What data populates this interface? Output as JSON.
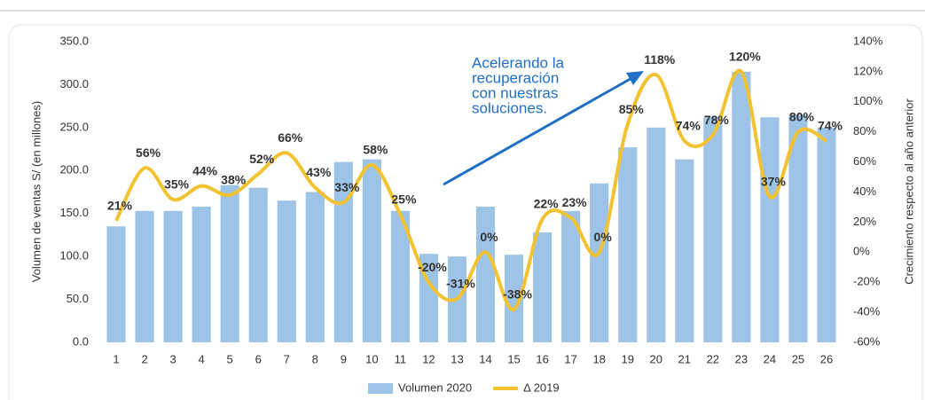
{
  "chart_data": {
    "type": "combo",
    "ylabel": "Volumen de ventas S/ (en millones)",
    "y2label": "Crecimiento respecto al año anterior",
    "annotation": [
      "Acelerando la",
      "recuperación",
      "con nuestras",
      "soluciones."
    ],
    "categories": [
      "1",
      "2",
      "3",
      "4",
      "5",
      "6",
      "7",
      "8",
      "9",
      "10",
      "11",
      "12",
      "13",
      "14",
      "15",
      "16",
      "17",
      "18",
      "19",
      "20",
      "21",
      "22",
      "23",
      "24",
      "25",
      "26"
    ],
    "series": [
      {
        "name": "Volumen 2020",
        "type": "bar",
        "color": "#9dc3e6",
        "values": [
          135,
          153,
          153,
          158,
          183,
          180,
          165,
          175,
          210,
          213,
          153,
          103,
          100,
          158,
          102,
          128,
          153,
          185,
          227,
          250,
          213,
          262,
          315,
          262,
          265,
          250
        ]
      },
      {
        "name": "Δ 2019",
        "type": "line",
        "axis": "y2",
        "color": "#f2c230",
        "values": [
          21,
          56,
          35,
          44,
          38,
          52,
          66,
          43,
          33,
          58,
          25,
          -20,
          -31,
          0,
          -38,
          22,
          23,
          0,
          85,
          118,
          74,
          78,
          120,
          37,
          80,
          74
        ],
        "value_labels": [
          "21%",
          "56%",
          "35%",
          "44%",
          "38%",
          "52%",
          "66%",
          "43%",
          "33%",
          "58%",
          "25%",
          "-20%",
          "-31%",
          "0%",
          "-38%",
          "22%",
          "23%",
          "0%",
          "85%",
          "118%",
          "74%",
          "78%",
          "120%",
          "37%",
          "80%",
          "74%"
        ]
      }
    ],
    "ylim": [
      0,
      350
    ],
    "yticks": [
      {
        "value": 0,
        "label": "0.0"
      },
      {
        "value": 50,
        "label": "50.0"
      },
      {
        "value": 100,
        "label": "100.0"
      },
      {
        "value": 150,
        "label": "150.0"
      },
      {
        "value": 200,
        "label": "200.0"
      },
      {
        "value": 250,
        "label": "250.0"
      },
      {
        "value": 300,
        "label": "300.0"
      },
      {
        "value": 350,
        "label": "350.0"
      }
    ],
    "y2lim": [
      -60,
      140
    ],
    "y2ticks": [
      {
        "value": -60,
        "label": "-60%"
      },
      {
        "value": -40,
        "label": "-40%"
      },
      {
        "value": -20,
        "label": "-20%"
      },
      {
        "value": 0,
        "label": "0%"
      },
      {
        "value": 20,
        "label": "20%"
      },
      {
        "value": 40,
        "label": "40%"
      },
      {
        "value": 60,
        "label": "60%"
      },
      {
        "value": 80,
        "label": "80%"
      },
      {
        "value": 100,
        "label": "100%"
      },
      {
        "value": 120,
        "label": "120%"
      },
      {
        "value": 140,
        "label": "140%"
      }
    ],
    "legend": "bottom"
  }
}
